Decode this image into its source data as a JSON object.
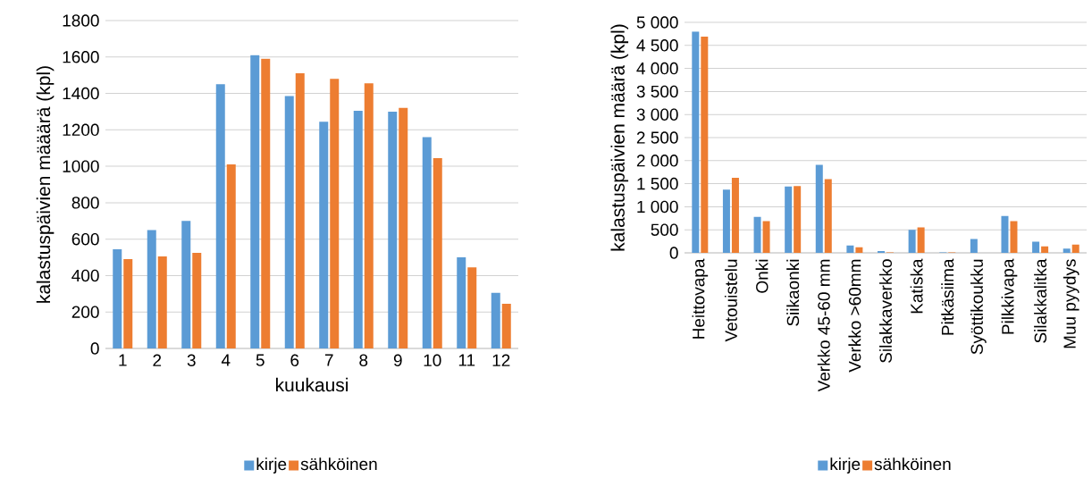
{
  "chart_data": [
    {
      "type": "bar",
      "xlabel": "kuukausi",
      "ylabel": "kalastuspäivien määärä (kpl)",
      "categories": [
        "1",
        "2",
        "3",
        "4",
        "5",
        "6",
        "7",
        "8",
        "9",
        "10",
        "11",
        "12"
      ],
      "series": [
        {
          "name": "kirje",
          "color": "#5b9bd5",
          "values": [
            545,
            650,
            700,
            1450,
            1610,
            1385,
            1245,
            1305,
            1300,
            1160,
            500,
            305
          ]
        },
        {
          "name": "sähköinen",
          "color": "#ed7d31",
          "values": [
            490,
            505,
            525,
            1010,
            1590,
            1510,
            1480,
            1455,
            1320,
            1045,
            445,
            245
          ]
        }
      ],
      "ylim": [
        0,
        1800
      ],
      "yticks": [
        0,
        200,
        400,
        600,
        800,
        1000,
        1200,
        1400,
        1600,
        1800
      ],
      "grid": "y",
      "legend": "bottom"
    },
    {
      "type": "bar",
      "ylabel": "kalastuspäivien määrä (kpl)",
      "categories": [
        "Heittovapa",
        "Vetouistelu",
        "Onki",
        "Siikaonki",
        "Verkko 45-60 mm",
        "Verkko >60mm",
        "Silakkaverkko",
        "Katiska",
        "Pitkäsiima",
        "Syöttikoukku",
        "Pilkkivapa",
        "Silakkalitka",
        "Muu pyydys"
      ],
      "series": [
        {
          "name": "kirje",
          "color": "#5b9bd5",
          "values": [
            4800,
            1370,
            780,
            1440,
            1910,
            160,
            40,
            500,
            10,
            300,
            800,
            240,
            90
          ]
        },
        {
          "name": "sähköinen",
          "color": "#ed7d31",
          "values": [
            4690,
            1630,
            690,
            1450,
            1600,
            120,
            10,
            550,
            10,
            null,
            690,
            140,
            180
          ]
        }
      ],
      "ylim": [
        0,
        5000
      ],
      "yticks": [
        {
          "value": 0,
          "label": "0"
        },
        {
          "value": 500,
          "label": "500"
        },
        {
          "value": 1000,
          "label": "1 000"
        },
        {
          "value": 1500,
          "label": "1 500"
        },
        {
          "value": 2000,
          "label": "2 000"
        },
        {
          "value": 2500,
          "label": "2 500"
        },
        {
          "value": 3000,
          "label": "3 000"
        },
        {
          "value": 3500,
          "label": "3 500"
        },
        {
          "value": 4000,
          "label": "4 000"
        },
        {
          "value": 4500,
          "label": "4 500"
        },
        {
          "value": 5000,
          "label": "5 000"
        }
      ],
      "grid": "y",
      "legend": "bottom"
    }
  ]
}
